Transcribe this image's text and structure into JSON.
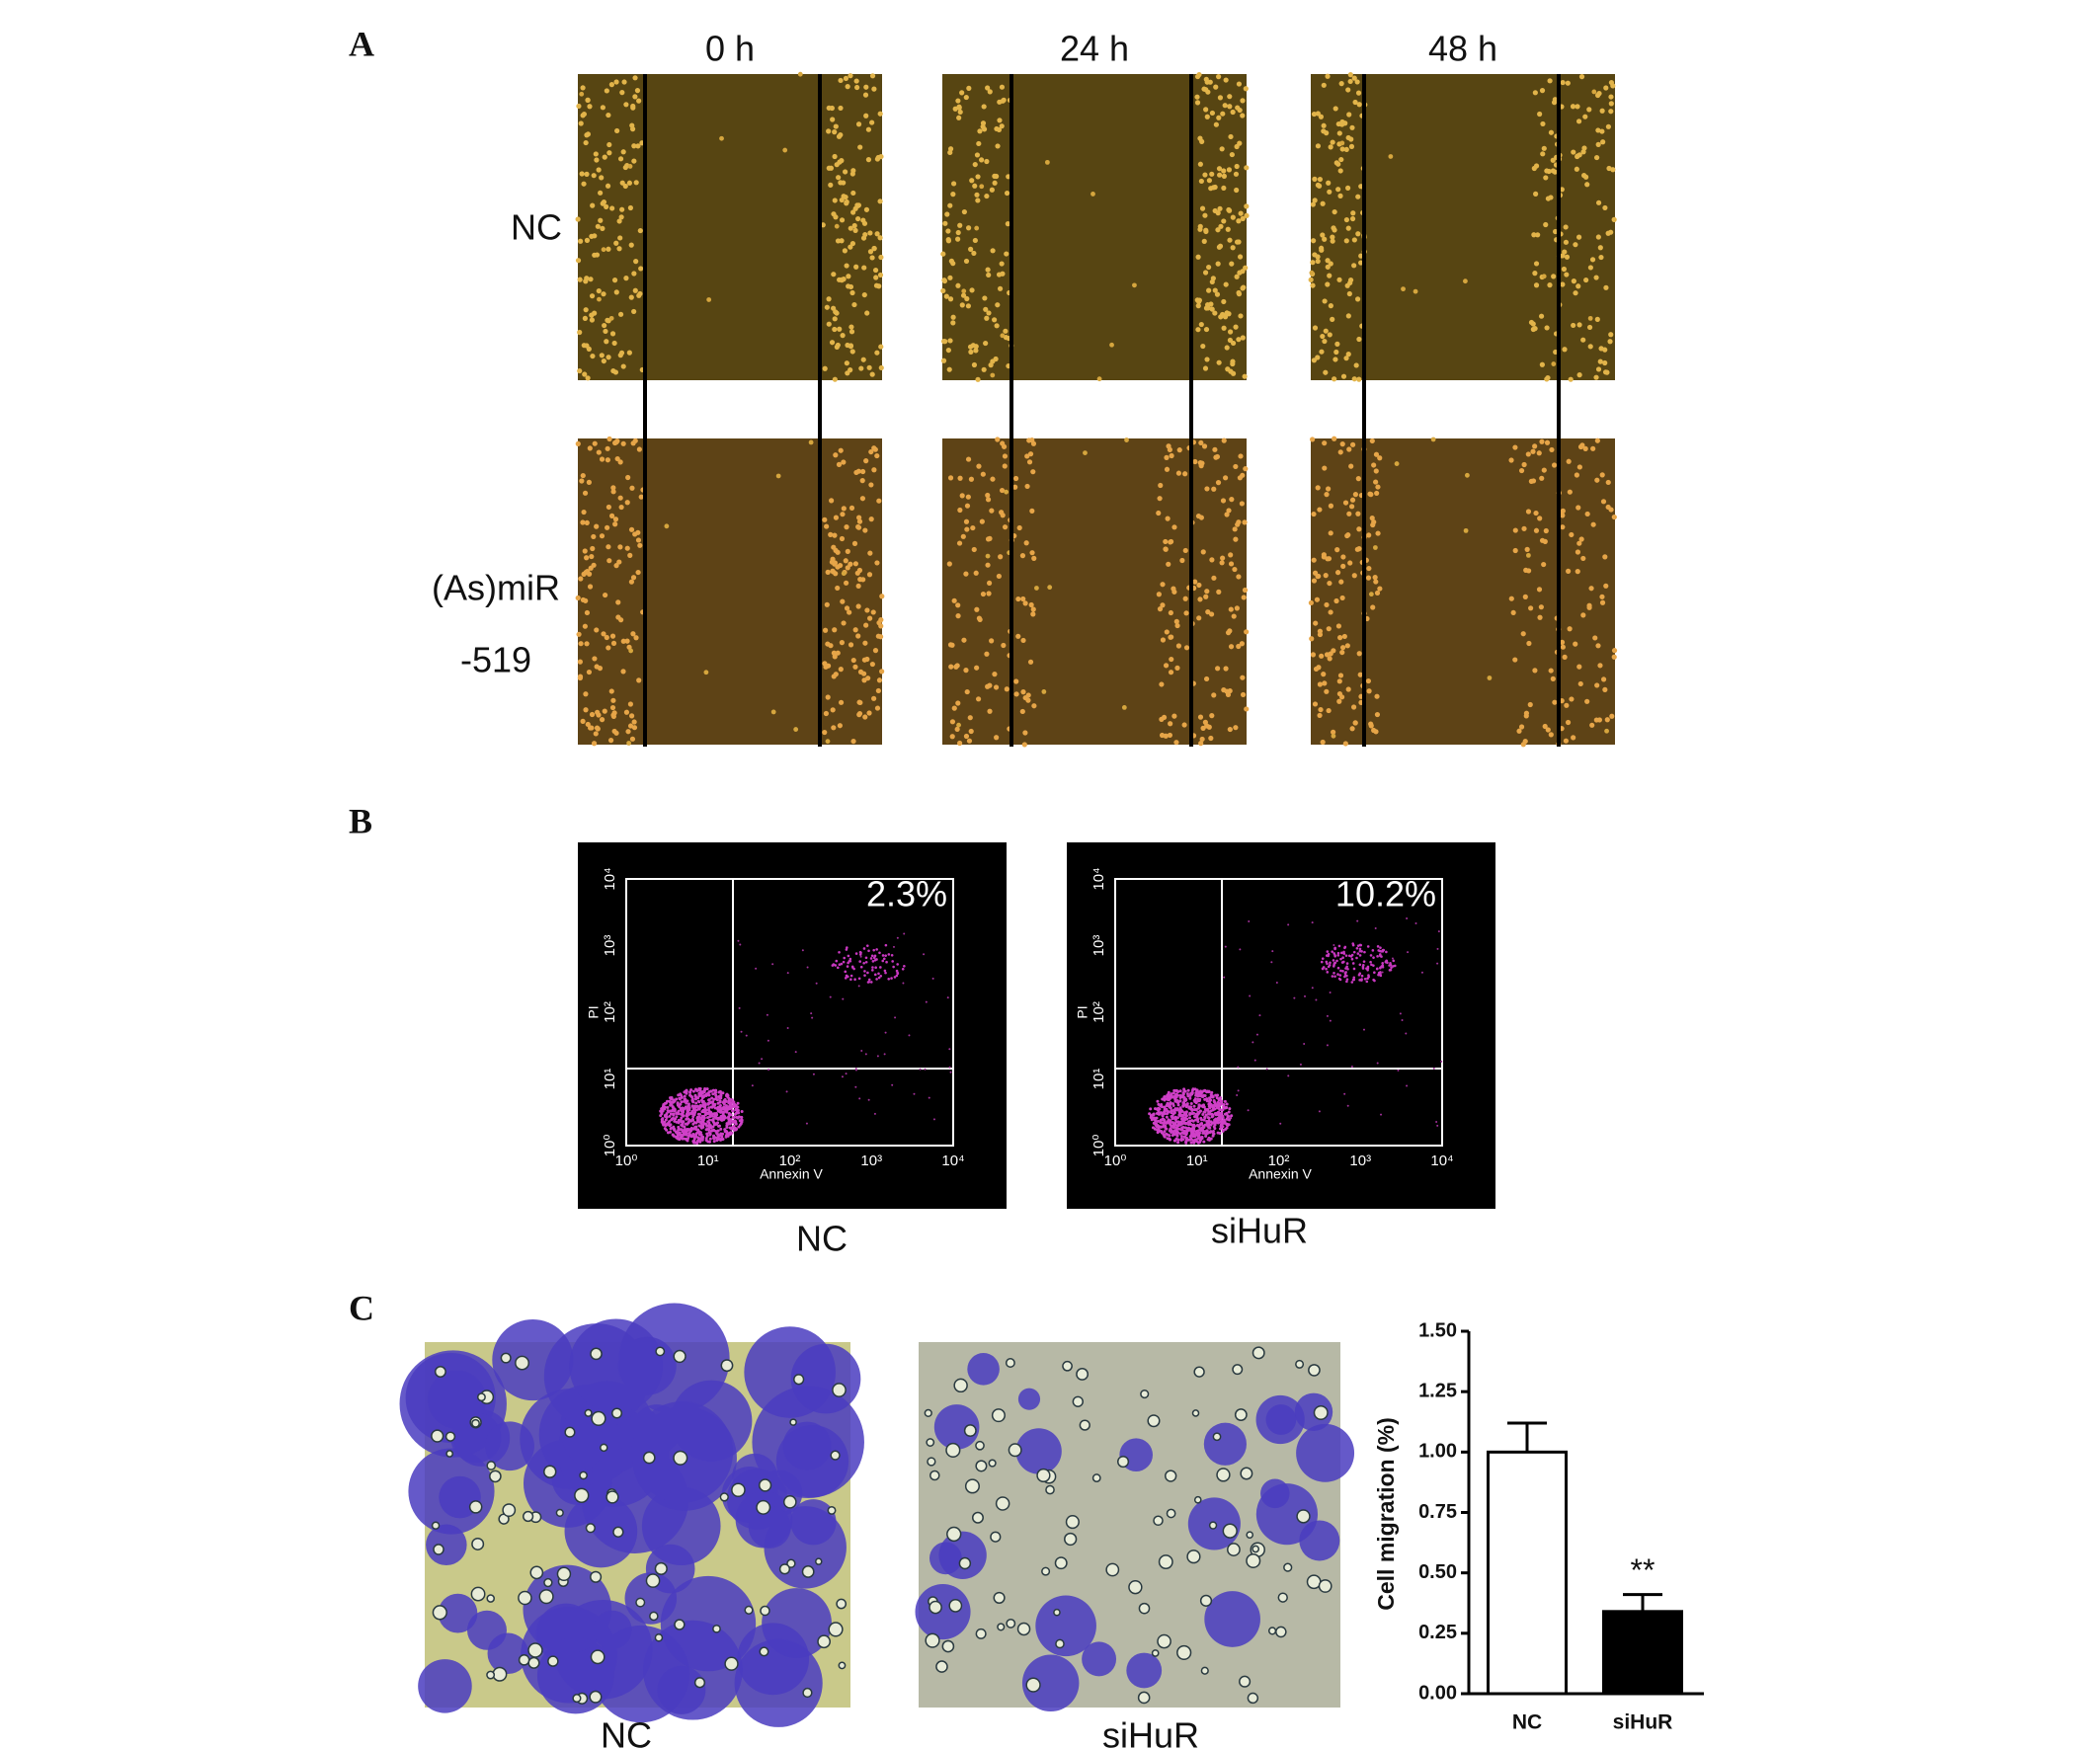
{
  "panels": {
    "A": {
      "label": "A",
      "columns": [
        "0 h",
        "24 h",
        "48 h"
      ],
      "rows": [
        {
          "lines": [
            "NC"
          ]
        },
        {
          "lines": [
            "(As)miR",
            "-519"
          ]
        }
      ]
    },
    "B": {
      "label": "B",
      "x_label": "Annexin V",
      "y_label": "PI",
      "ticks": [
        "10⁰",
        "10¹",
        "10²",
        "10³",
        "10⁴"
      ],
      "plots": [
        {
          "name": "NC",
          "percent": "2.3%"
        },
        {
          "name": "siHuR",
          "percent": "10.2%"
        }
      ]
    },
    "C": {
      "label": "C",
      "images": [
        "NC",
        "siHuR"
      ]
    }
  },
  "chart_data": {
    "type": "bar",
    "y_label": "Cell migration (%)",
    "categories": [
      "NC",
      "siHuR"
    ],
    "values": [
      1.0,
      0.34
    ],
    "errors": [
      0.12,
      0.07
    ],
    "colors": [
      "#ffffff",
      "#000000"
    ],
    "annotation": "**",
    "ylim": [
      0,
      1.5
    ],
    "yticks": [
      {
        "value": 0,
        "label": "0.00"
      },
      {
        "value": 0.25,
        "label": "0.25"
      },
      {
        "value": 0.5,
        "label": "0.50"
      },
      {
        "value": 0.75,
        "label": "0.75"
      },
      {
        "value": 1.0,
        "label": "1.00"
      },
      {
        "value": 1.25,
        "label": "1.25"
      },
      {
        "value": 1.5,
        "label": "1.50"
      }
    ]
  }
}
